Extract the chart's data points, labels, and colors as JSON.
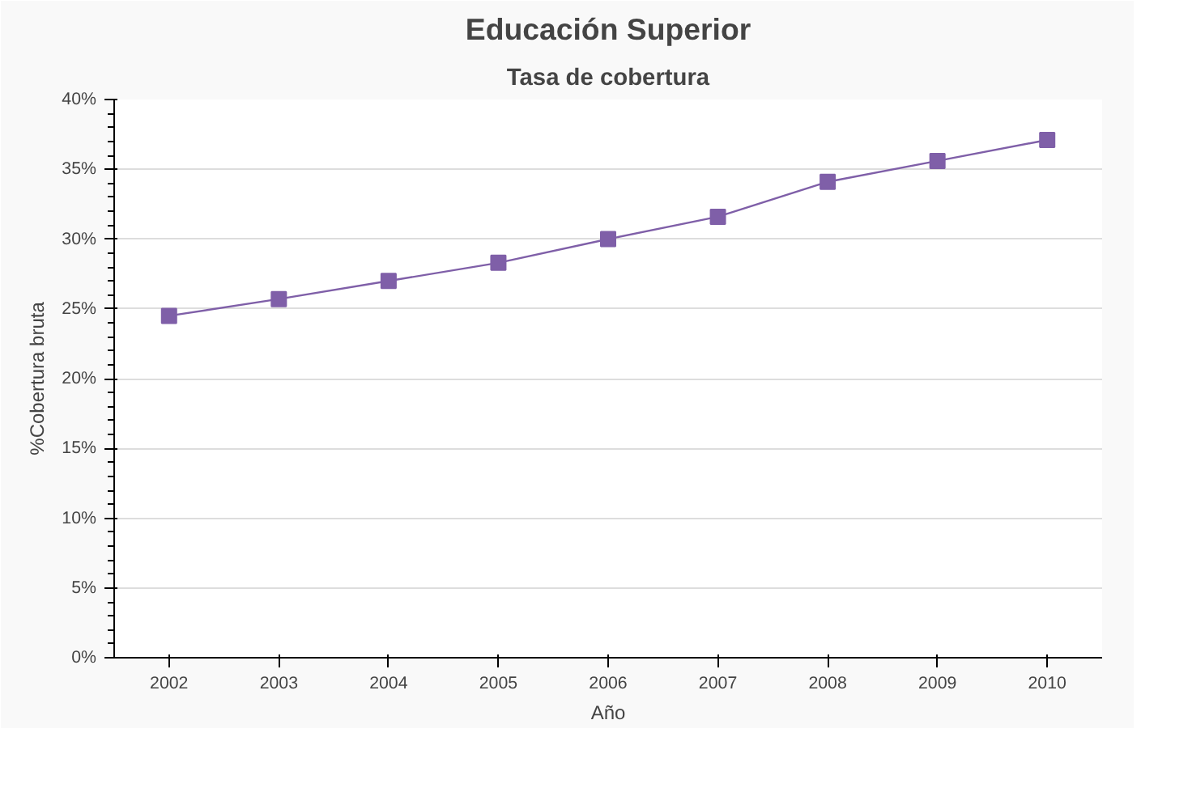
{
  "chart_data": {
    "type": "line",
    "title": "Educación Superior",
    "subtitle": "Tasa de cobertura",
    "xlabel": "Año",
    "ylabel": "%Cobertura bruta",
    "categories": [
      "2002",
      "2003",
      "2004",
      "2005",
      "2006",
      "2007",
      "2008",
      "2009",
      "2010"
    ],
    "series": [
      {
        "color": "#7f5fa8",
        "values": [
          24.5,
          25.7,
          27.0,
          28.3,
          30.0,
          31.6,
          34.1,
          35.6,
          37.1
        ]
      }
    ],
    "ylim": [
      0,
      40
    ],
    "yticks": [
      {
        "value": 0,
        "label": "0%"
      },
      {
        "value": 5,
        "label": "5%"
      },
      {
        "value": 10,
        "label": "10%"
      },
      {
        "value": 15,
        "label": "15%"
      },
      {
        "value": 20,
        "label": "20%"
      },
      {
        "value": 25,
        "label": "25%"
      },
      {
        "value": 30,
        "label": "30%"
      },
      {
        "value": 35,
        "label": "35%"
      },
      {
        "value": 40,
        "label": "40%"
      }
    ],
    "grid": "y",
    "marker": "square",
    "line_style": "solid"
  }
}
